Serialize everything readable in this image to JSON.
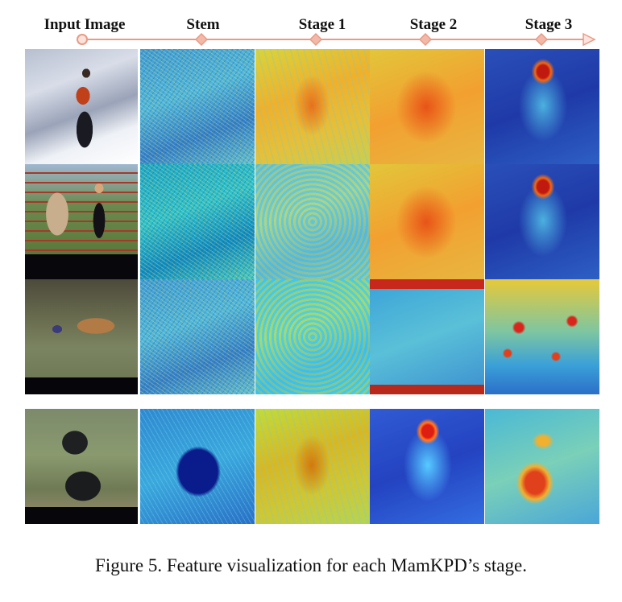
{
  "figure": {
    "column_labels": [
      "Input Image",
      "Stem",
      "Stage 1",
      "Stage 2",
      "Stage 3"
    ],
    "rows": [
      {
        "subject": "skier"
      },
      {
        "subject": "woman with horse"
      },
      {
        "subject": "antelope"
      },
      {
        "subject": "chimpanzee"
      }
    ],
    "caption": "Figure 5. Feature visualization for each MamKPD’s stage."
  },
  "colors": {
    "timeline": "#e89a86",
    "heat_hot": "#c8271c",
    "heat_cold": "#1f3aa8"
  }
}
